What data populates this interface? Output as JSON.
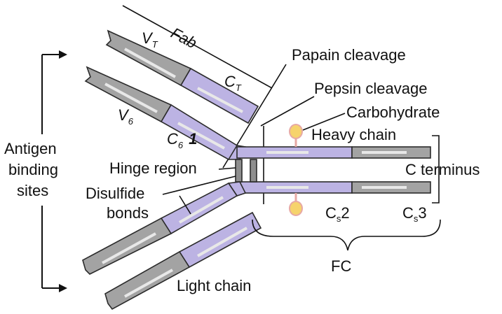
{
  "labels": {
    "fab": "Fab",
    "vt": "V",
    "vt_sub": "T",
    "ct": "C",
    "ct_sub": "T",
    "v6": "V",
    "v6_sub": "6",
    "c61": "C",
    "c61_sub": "6",
    "c61_tail": "1",
    "papain": "Papain cleavage",
    "pepsin": "Pepsin cleavage",
    "carbohydrate": "Carbohydrate",
    "heavy_chain": "Heavy chain",
    "hinge_region": "Hinge region",
    "c_terminus": "C terminus",
    "antigen_line1": "Antigen",
    "antigen_line2": "binding",
    "antigen_line3": "sites",
    "disulfide_line1": "Disulfide",
    "disulfide_line2": "bonds",
    "cs2": "C",
    "cs2_sub": "s",
    "cs2_tail": "2",
    "cs3": "C",
    "cs3_sub": "s",
    "cs3_tail": "3",
    "fc": "FC",
    "light_chain": "Light chain"
  },
  "colors": {
    "variable_gray": "#a3a3a3",
    "constant_purple": "#bcb3e3",
    "inner_stripe": "#e8e8e8",
    "outline": "#2b2b2b",
    "hinge_fill": "#8e8e8e",
    "carbohydrate_fill": "#f6d36c",
    "carbohydrate_stroke": "#e7a9a4"
  }
}
